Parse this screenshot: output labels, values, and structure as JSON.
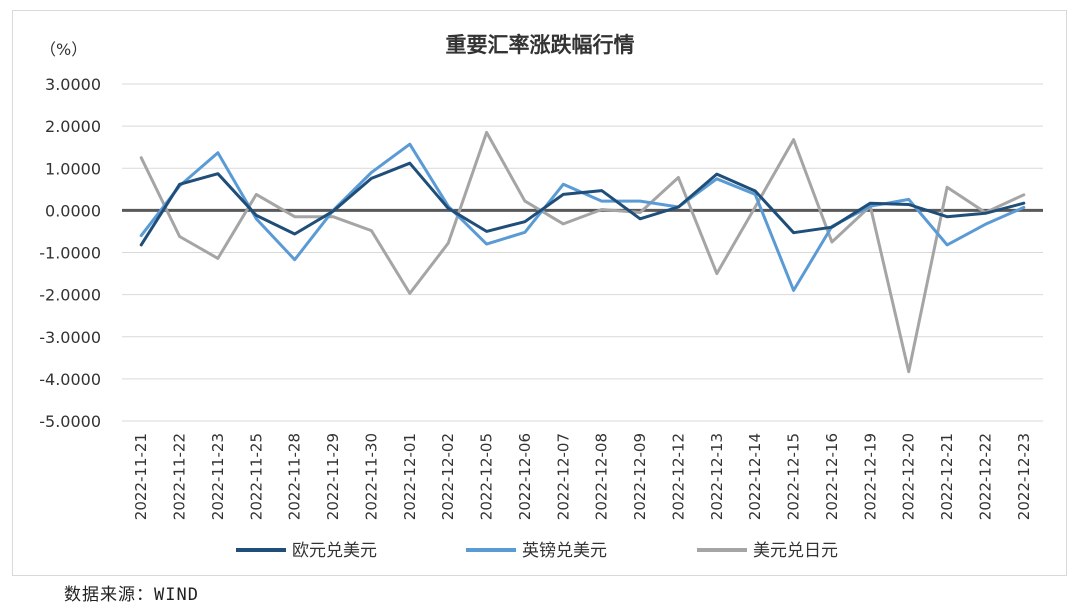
{
  "chart_data": {
    "type": "line",
    "title": "重要汇率涨跌幅行情",
    "unit_label": "（%）",
    "ylim": [
      -5,
      3
    ],
    "yticks": [
      3,
      2,
      1,
      0,
      -1,
      -2,
      -3,
      -4,
      -5
    ],
    "ytick_labels": [
      "3.0000",
      "2.0000",
      "1.0000",
      "0.0000",
      "-1.0000",
      "-2.0000",
      "-3.0000",
      "-4.0000",
      "-5.0000"
    ],
    "grid": true,
    "legend_position": "bottom",
    "categories": [
      "2022-11-21",
      "2022-11-22",
      "2022-11-23",
      "2022-11-25",
      "2022-11-28",
      "2022-11-29",
      "2022-11-30",
      "2022-12-01",
      "2022-12-02",
      "2022-12-05",
      "2022-12-06",
      "2022-12-07",
      "2022-12-08",
      "2022-12-09",
      "2022-12-12",
      "2022-12-13",
      "2022-12-14",
      "2022-12-15",
      "2022-12-16",
      "2022-12-19",
      "2022-12-20",
      "2022-12-21",
      "2022-12-22",
      "2022-12-23"
    ],
    "series": [
      {
        "name": "欧元兑美元",
        "color": "#1f4e79",
        "values": [
          -0.82,
          0.62,
          0.87,
          -0.12,
          -0.56,
          -0.02,
          0.76,
          1.12,
          0.05,
          -0.5,
          -0.27,
          0.38,
          0.47,
          -0.2,
          0.08,
          0.86,
          0.46,
          -0.53,
          -0.4,
          0.17,
          0.14,
          -0.15,
          -0.07,
          0.17
        ]
      },
      {
        "name": "英镑兑美元",
        "color": "#5b9bd5",
        "values": [
          -0.6,
          0.58,
          1.37,
          -0.2,
          -1.17,
          0.0,
          0.9,
          1.57,
          0.1,
          -0.8,
          -0.52,
          0.62,
          0.22,
          0.22,
          0.08,
          0.75,
          0.38,
          -1.9,
          -0.38,
          0.1,
          0.26,
          -0.82,
          -0.33,
          0.07
        ]
      },
      {
        "name": "美元兑日元",
        "color": "#a5a5a5",
        "values": [
          1.25,
          -0.62,
          -1.14,
          0.38,
          -0.15,
          -0.15,
          -0.48,
          -1.97,
          -0.78,
          1.85,
          0.22,
          -0.32,
          0.02,
          -0.05,
          0.78,
          -1.5,
          0.08,
          1.68,
          -0.75,
          0.1,
          -3.83,
          0.55,
          -0.05,
          0.37
        ]
      }
    ]
  },
  "source_note": "数据来源：WIND"
}
